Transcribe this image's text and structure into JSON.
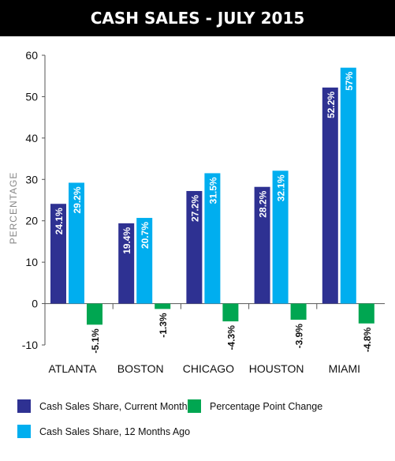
{
  "chart_data": {
    "type": "bar",
    "title": "CASH SALES - JULY 2015",
    "ylabel": "PERCENTAGE",
    "xlabel": "",
    "ylim": [
      -10,
      60
    ],
    "yticks": [
      -10,
      0,
      10,
      20,
      30,
      40,
      50,
      60
    ],
    "categories": [
      "ATLANTA",
      "BOSTON",
      "CHICAGO",
      "HOUSTON",
      "MIAMI"
    ],
    "series": [
      {
        "name": "Cash Sales Share, Current Month",
        "color": "#2e3192",
        "values": [
          24.1,
          19.4,
          27.2,
          28.2,
          52.2
        ],
        "labels": [
          "24.1%",
          "19.4%",
          "27.2%",
          "28.2%",
          "52.2%"
        ]
      },
      {
        "name": "Cash Sales Share, 12 Months Ago",
        "color": "#00aeef",
        "values": [
          29.2,
          20.7,
          31.5,
          32.1,
          57
        ],
        "labels": [
          "29.2%",
          "20.7%",
          "31.5%",
          "32.1%",
          "57%"
        ]
      },
      {
        "name": "Percentage Point Change",
        "color": "#00a651",
        "values": [
          -5.1,
          -1.3,
          -4.3,
          -3.9,
          -4.8
        ],
        "labels": [
          "-5.1%",
          "-1.3%",
          "-4.3%",
          "-3.9%",
          "-4.8%"
        ]
      }
    ],
    "grid": false,
    "legend": "bottom"
  }
}
